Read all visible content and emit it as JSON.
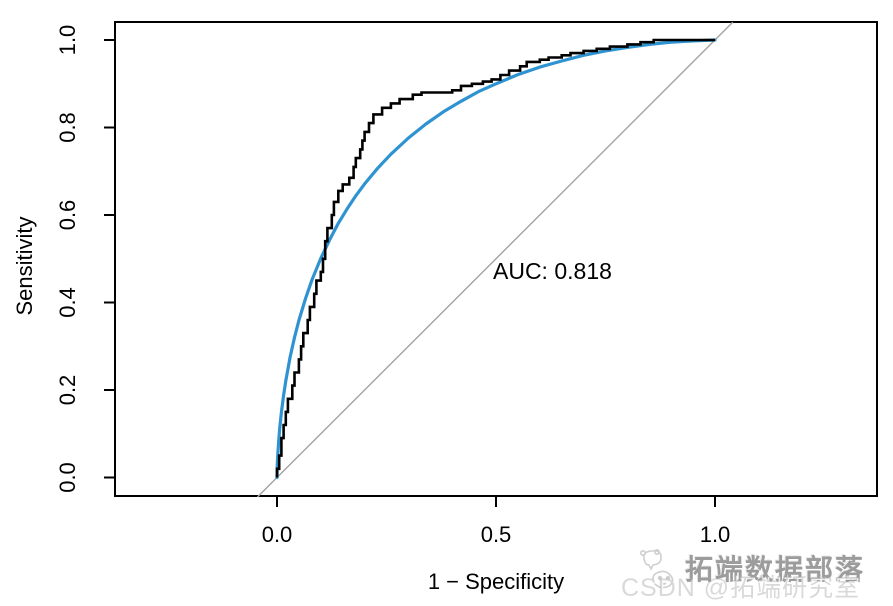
{
  "figure": {
    "description": "R-style ROC curve plot with empirical step curve, smoothed fit and chance diagonal",
    "background": "#ffffff"
  },
  "chart_data": {
    "type": "line",
    "title": "",
    "xlabel": "1 − Specificity",
    "ylabel": "Sensitivity",
    "xlim": [
      0,
      1
    ],
    "ylim": [
      0,
      1
    ],
    "grid": false,
    "legend": "none",
    "xticks": [
      "0.0",
      "0.5",
      "1.0"
    ],
    "yticks": [
      "0.0",
      "0.2",
      "0.4",
      "0.6",
      "0.8",
      "1.0"
    ],
    "annotation": "AUC: 0.818",
    "auc": 0.818,
    "colors": {
      "empirical": "#000000",
      "smoothed": "#2e93d0",
      "diagonal": "#a3a3a3",
      "box": "#000000"
    },
    "series": [
      {
        "name": "chance-diagonal",
        "type": "line",
        "color_key": "diagonal",
        "points": [
          [
            -0.0445,
            -0.0445
          ],
          [
            1.0405,
            1.0405
          ]
        ]
      },
      {
        "name": "smoothed-roc",
        "type": "smooth",
        "color_key": "smoothed",
        "points": [
          [
            0,
            0
          ],
          [
            0.0005,
            0.022
          ],
          [
            0.001,
            0.035
          ],
          [
            0.002,
            0.056
          ],
          [
            0.004,
            0.086
          ],
          [
            0.006,
            0.11
          ],
          [
            0.01,
            0.149
          ],
          [
            0.015,
            0.188
          ],
          [
            0.02,
            0.221
          ],
          [
            0.03,
            0.275
          ],
          [
            0.04,
            0.32
          ],
          [
            0.05,
            0.359
          ],
          [
            0.065,
            0.409
          ],
          [
            0.08,
            0.452
          ],
          [
            0.1,
            0.501
          ],
          [
            0.12,
            0.543
          ],
          [
            0.14,
            0.581
          ],
          [
            0.16,
            0.614
          ],
          [
            0.18,
            0.644
          ],
          [
            0.2,
            0.671
          ],
          [
            0.23,
            0.707
          ],
          [
            0.26,
            0.739
          ],
          [
            0.3,
            0.776
          ],
          [
            0.34,
            0.808
          ],
          [
            0.38,
            0.836
          ],
          [
            0.42,
            0.86
          ],
          [
            0.46,
            0.882
          ],
          [
            0.5,
            0.9
          ],
          [
            0.55,
            0.921
          ],
          [
            0.6,
            0.938
          ],
          [
            0.65,
            0.952
          ],
          [
            0.7,
            0.965
          ],
          [
            0.75,
            0.975
          ],
          [
            0.8,
            0.983
          ],
          [
            0.85,
            0.99
          ],
          [
            0.9,
            0.995
          ],
          [
            0.95,
            0.998
          ],
          [
            1,
            1
          ]
        ]
      },
      {
        "name": "empirical-roc",
        "type": "step",
        "color_key": "empirical",
        "points": [
          [
            0,
            0
          ],
          [
            0,
            0.02
          ],
          [
            0.005,
            0.02
          ],
          [
            0.005,
            0.05
          ],
          [
            0.01,
            0.05
          ],
          [
            0.01,
            0.09
          ],
          [
            0.015,
            0.09
          ],
          [
            0.015,
            0.12
          ],
          [
            0.02,
            0.12
          ],
          [
            0.02,
            0.15
          ],
          [
            0.025,
            0.15
          ],
          [
            0.025,
            0.18
          ],
          [
            0.035,
            0.18
          ],
          [
            0.035,
            0.21
          ],
          [
            0.04,
            0.21
          ],
          [
            0.04,
            0.24
          ],
          [
            0.05,
            0.24
          ],
          [
            0.05,
            0.27
          ],
          [
            0.055,
            0.27
          ],
          [
            0.055,
            0.3
          ],
          [
            0.06,
            0.3
          ],
          [
            0.06,
            0.33
          ],
          [
            0.07,
            0.33
          ],
          [
            0.07,
            0.36
          ],
          [
            0.075,
            0.36
          ],
          [
            0.075,
            0.39
          ],
          [
            0.085,
            0.39
          ],
          [
            0.085,
            0.42
          ],
          [
            0.09,
            0.42
          ],
          [
            0.09,
            0.45
          ],
          [
            0.1,
            0.45
          ],
          [
            0.1,
            0.47
          ],
          [
            0.105,
            0.47
          ],
          [
            0.105,
            0.5
          ],
          [
            0.11,
            0.5
          ],
          [
            0.11,
            0.54
          ],
          [
            0.115,
            0.54
          ],
          [
            0.115,
            0.57
          ],
          [
            0.125,
            0.57
          ],
          [
            0.125,
            0.6
          ],
          [
            0.13,
            0.6
          ],
          [
            0.13,
            0.63
          ],
          [
            0.14,
            0.63
          ],
          [
            0.14,
            0.655
          ],
          [
            0.15,
            0.655
          ],
          [
            0.15,
            0.67
          ],
          [
            0.165,
            0.67
          ],
          [
            0.165,
            0.685
          ],
          [
            0.175,
            0.685
          ],
          [
            0.175,
            0.71
          ],
          [
            0.18,
            0.71
          ],
          [
            0.18,
            0.73
          ],
          [
            0.19,
            0.73
          ],
          [
            0.19,
            0.75
          ],
          [
            0.195,
            0.75
          ],
          [
            0.195,
            0.77
          ],
          [
            0.2,
            0.77
          ],
          [
            0.2,
            0.79
          ],
          [
            0.21,
            0.79
          ],
          [
            0.21,
            0.81
          ],
          [
            0.22,
            0.81
          ],
          [
            0.22,
            0.83
          ],
          [
            0.24,
            0.83
          ],
          [
            0.24,
            0.845
          ],
          [
            0.26,
            0.845
          ],
          [
            0.26,
            0.855
          ],
          [
            0.28,
            0.855
          ],
          [
            0.28,
            0.865
          ],
          [
            0.31,
            0.865
          ],
          [
            0.31,
            0.875
          ],
          [
            0.33,
            0.875
          ],
          [
            0.33,
            0.88
          ],
          [
            0.4,
            0.88
          ],
          [
            0.4,
            0.885
          ],
          [
            0.42,
            0.885
          ],
          [
            0.42,
            0.895
          ],
          [
            0.445,
            0.895
          ],
          [
            0.445,
            0.9
          ],
          [
            0.47,
            0.9
          ],
          [
            0.47,
            0.905
          ],
          [
            0.49,
            0.905
          ],
          [
            0.49,
            0.91
          ],
          [
            0.51,
            0.91
          ],
          [
            0.51,
            0.92
          ],
          [
            0.53,
            0.92
          ],
          [
            0.53,
            0.93
          ],
          [
            0.555,
            0.93
          ],
          [
            0.555,
            0.94
          ],
          [
            0.57,
            0.94
          ],
          [
            0.57,
            0.95
          ],
          [
            0.6,
            0.95
          ],
          [
            0.6,
            0.955
          ],
          [
            0.62,
            0.955
          ],
          [
            0.62,
            0.96
          ],
          [
            0.65,
            0.96
          ],
          [
            0.65,
            0.965
          ],
          [
            0.67,
            0.965
          ],
          [
            0.67,
            0.97
          ],
          [
            0.7,
            0.97
          ],
          [
            0.7,
            0.975
          ],
          [
            0.73,
            0.975
          ],
          [
            0.73,
            0.98
          ],
          [
            0.76,
            0.98
          ],
          [
            0.76,
            0.985
          ],
          [
            0.8,
            0.985
          ],
          [
            0.8,
            0.99
          ],
          [
            0.83,
            0.99
          ],
          [
            0.83,
            0.995
          ],
          [
            0.86,
            0.995
          ],
          [
            0.86,
            1
          ],
          [
            1,
            1
          ]
        ]
      }
    ]
  },
  "watermark": {
    "logo": "panda-chat-logo",
    "line1": "拓端数据部落",
    "line2": "CSDN @拓端研究室"
  }
}
